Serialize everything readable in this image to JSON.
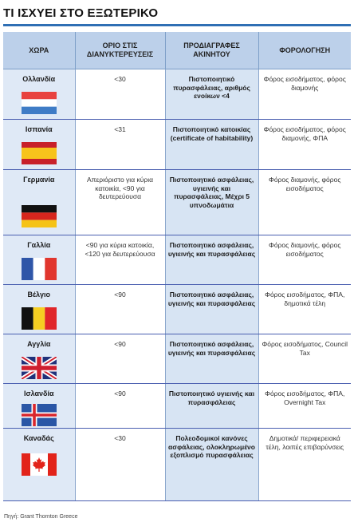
{
  "title": "ΤΙ ΙΣΧΥΕΙ ΣΤΟ ΕΞΩΤΕΡΙΚΟ",
  "headers": {
    "country": "ΧΩΡΑ",
    "limit": "ΟΡΙΟ ΣΤΙΣ ΔΙΑΝΥΚΤΕΡΕΥΣΕΙΣ",
    "specs": "ΠΡΟΔΙΑΓΡΑΦΕΣ ΑΚΙΝΗΤΟΥ",
    "tax": "ΦΟΡΟΛΟΓΗΣΗ"
  },
  "rows": [
    {
      "country": "Ολλανδία",
      "flag": "netherlands-flag-icon",
      "limit": "<30",
      "specs": "Πιστοποιητικό πυρασφάλειας, αριθμός ενοίκων <4",
      "tax": "Φόρος εισοδήματος, φόρος διαμονής"
    },
    {
      "country": "Ισπανία",
      "flag": "spain-flag-icon",
      "limit": "<31",
      "specs": "Πιστοποιητικό κατοικίας (certificate of habitability)",
      "tax": "Φόρος εισοδήματος, φόρος διαμονής, ΦΠΑ"
    },
    {
      "country": "Γερμανία",
      "flag": "germany-flag-icon",
      "limit": "Απεριόριστο για κύρια κατοικία, <90 για δευτερεύουσα",
      "specs": "Πιστοποιητικό ασφάλειας, υγιεινής και πυρασφάλειας, Μέχρι 5 υπνοδωμάτια",
      "tax": "Φόρος διαμονής, φόρος εισοδήματος"
    },
    {
      "country": "Γαλλία",
      "flag": "france-flag-icon",
      "limit": "<90 για κύρια κατοικία, <120 για δευτερεύουσα",
      "specs": "Πιστοποιητικό ασφάλειας, υγιεινής και πυρασφάλειας",
      "tax": "Φόρος διαμονής, φόρος εισοδήματος"
    },
    {
      "country": "Βέλγιο",
      "flag": "belgium-flag-icon",
      "limit": "<90",
      "specs": "Πιστοποιητικό ασφάλειας, υγιεινής και πυρασφάλειας",
      "tax": "Φόρος εισοδήματος, ΦΠΑ, δημοτικά τέλη"
    },
    {
      "country": "Αγγλία",
      "flag": "uk-flag-icon",
      "limit": "<90",
      "specs": "Πιστοποιητικό ασφάλειας, υγιεινής και πυρασφάλειας",
      "tax": "Φόρος εισοδήματος, Council Tax"
    },
    {
      "country": "Ισλανδία",
      "flag": "iceland-flag-icon",
      "limit": "<90",
      "specs": "Πιστοποιητικό υγιεινής και πυρασφάλειας",
      "tax": "Φόρος εισοδήματος, ΦΠΑ, Overnight Tax"
    },
    {
      "country": "Καναδάς",
      "flag": "canada-flag-icon",
      "limit": "<30",
      "specs": "Πολεοδομικοί κανόνες ασφάλειας, ολοκληρωμένο εξοπλισμό πυρασφάλειας",
      "tax": "Δημοτικά/ περιφερειακά τέλη, λοιπές επιβαρύνσεις"
    }
  ],
  "source": "Πηγή: Grant Thornton Greece"
}
